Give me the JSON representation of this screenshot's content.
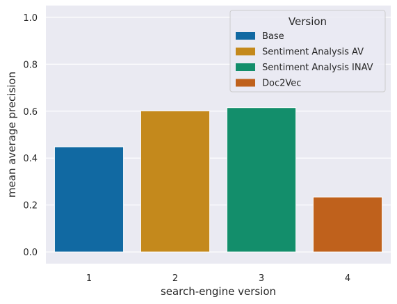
{
  "chart_data": {
    "type": "bar",
    "title": "",
    "xlabel": "search-engine version",
    "ylabel": "mean average precision",
    "categories": [
      "1",
      "2",
      "3",
      "4"
    ],
    "values": [
      0.448,
      0.601,
      0.615,
      0.234
    ],
    "colors": [
      "#1169a2",
      "#c4891c",
      "#138e6b",
      "#bf611c"
    ],
    "ylim": [
      -0.05,
      1.05
    ],
    "yticks": [
      "0.0",
      "0.2",
      "0.4",
      "0.6",
      "0.8",
      "1.0"
    ],
    "grid": true,
    "legend": {
      "title": "Version",
      "placement": "top-right",
      "entries": [
        "Base",
        "Sentiment Analysis AV",
        "Sentiment Analysis INAV",
        "Doc2Vec"
      ]
    }
  }
}
